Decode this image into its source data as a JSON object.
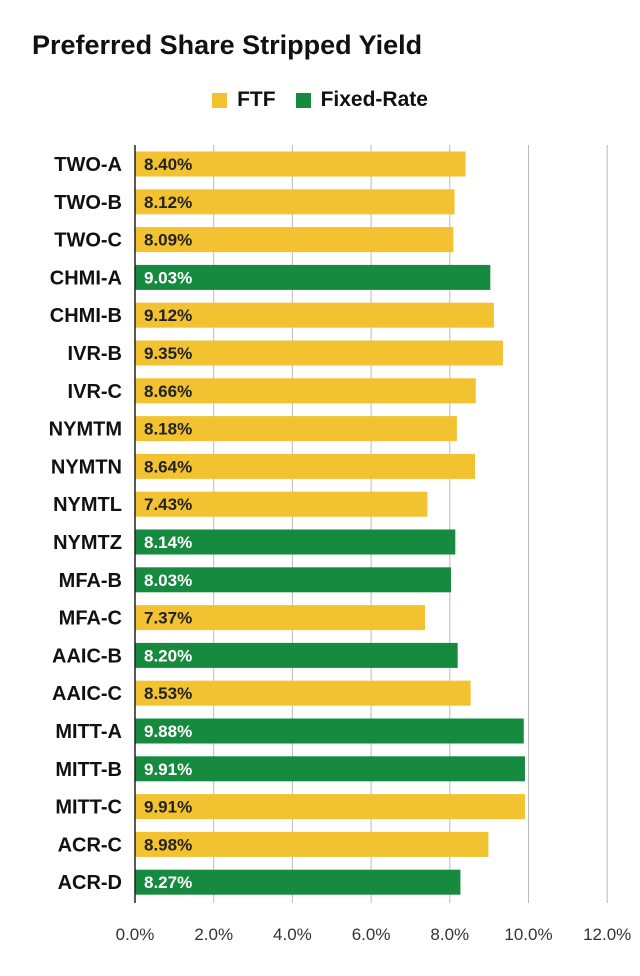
{
  "chart_data": {
    "type": "bar",
    "orientation": "horizontal",
    "title": "Preferred Share Stripped Yield",
    "legend": [
      {
        "name": "FTF",
        "color": "#F2C230"
      },
      {
        "name": "Fixed-Rate",
        "color": "#168A3E"
      }
    ],
    "categories": [
      "TWO-A",
      "TWO-B",
      "TWO-C",
      "CHMI-A",
      "CHMI-B",
      "IVR-B",
      "IVR-C",
      "NYMTM",
      "NYMTN",
      "NYMTL",
      "NYMTZ",
      "MFA-B",
      "MFA-C",
      "AAIC-B",
      "AAIC-C",
      "MITT-A",
      "MITT-B",
      "MITT-C",
      "ACR-C",
      "ACR-D"
    ],
    "values": [
      8.4,
      8.12,
      8.09,
      9.03,
      9.12,
      9.35,
      8.66,
      8.18,
      8.64,
      7.43,
      8.14,
      8.03,
      7.37,
      8.2,
      8.53,
      9.88,
      9.91,
      9.91,
      8.98,
      8.27
    ],
    "value_labels": [
      "8.40%",
      "8.12%",
      "8.09%",
      "9.03%",
      "9.12%",
      "9.35%",
      "8.66%",
      "8.18%",
      "8.64%",
      "7.43%",
      "8.14%",
      "8.03%",
      "7.37%",
      "8.20%",
      "8.53%",
      "9.88%",
      "9.91%",
      "9.91%",
      "8.98%",
      "8.27%"
    ],
    "series_type": [
      "FTF",
      "FTF",
      "FTF",
      "Fixed-Rate",
      "FTF",
      "FTF",
      "FTF",
      "FTF",
      "FTF",
      "FTF",
      "Fixed-Rate",
      "Fixed-Rate",
      "FTF",
      "Fixed-Rate",
      "FTF",
      "Fixed-Rate",
      "Fixed-Rate",
      "FTF",
      "FTF",
      "Fixed-Rate"
    ],
    "xlim": [
      0,
      12
    ],
    "xticks": [
      0,
      2,
      4,
      6,
      8,
      10,
      12
    ],
    "xtick_labels": [
      "0.0%",
      "2.0%",
      "4.0%",
      "6.0%",
      "8.0%",
      "10.0%",
      "12.0%"
    ],
    "grid": true,
    "legend_placement": "top-center",
    "label_colors": {
      "FTF": "#222222",
      "Fixed-Rate": "#ffffff"
    },
    "gridline_color": "#bbbbbb"
  }
}
